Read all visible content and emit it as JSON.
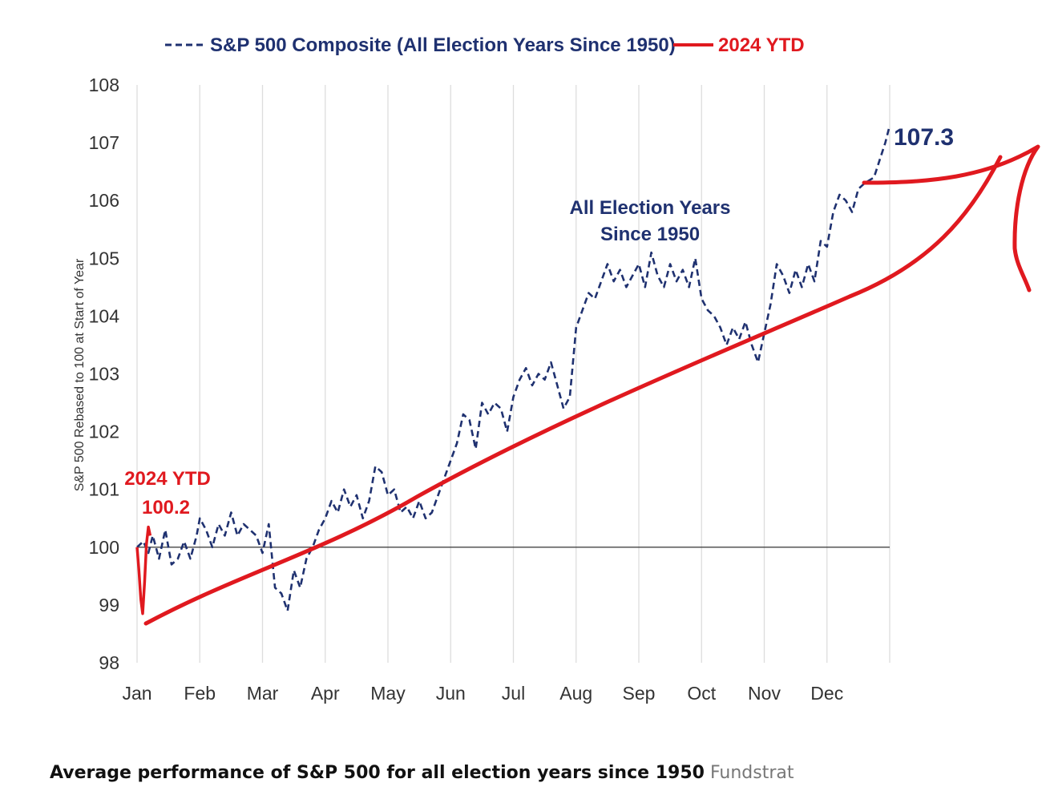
{
  "legend": {
    "composite_label": "S&P 500 Composite (All Election Years Since 1950)",
    "ytd_label": "2024 YTD"
  },
  "annotations": {
    "series_label_line1": "All Election Years",
    "series_label_line2": "Since 1950",
    "end_value": "107.3",
    "ytd_title": "2024 YTD",
    "ytd_value": "100.2"
  },
  "caption": {
    "title": "Average performance of S&P 500 for all election years since 1950",
    "source": "Fundstrat"
  },
  "colors": {
    "composite": "#1f3170",
    "ytd": "#e0191f",
    "grid": "#dddddd",
    "baseline": "#444444"
  },
  "chart_data": {
    "type": "line",
    "title": "",
    "xlabel": "",
    "ylabel": "S&P 500 Rebased to 100 at Start of Year",
    "ylim": [
      98,
      108
    ],
    "yticks": [
      98,
      99,
      100,
      101,
      102,
      103,
      104,
      105,
      106,
      107,
      108
    ],
    "months": [
      "Jan",
      "Feb",
      "Mar",
      "Apr",
      "May",
      "Jun",
      "Jul",
      "Aug",
      "Sep",
      "Oct",
      "Nov",
      "Dec"
    ],
    "reference_line": 100,
    "grid": "vertical",
    "legend_position": "top",
    "series": [
      {
        "name": "S&P 500 Composite (All Election Years Since 1950)",
        "style": "dashed",
        "x": [
          0.0,
          0.1,
          0.18,
          0.25,
          0.35,
          0.45,
          0.55,
          0.65,
          0.75,
          0.85,
          0.95,
          1.0,
          1.1,
          1.2,
          1.3,
          1.4,
          1.5,
          1.6,
          1.7,
          1.8,
          1.9,
          2.0,
          2.1,
          2.2,
          2.3,
          2.4,
          2.5,
          2.6,
          2.7,
          2.8,
          2.9,
          3.0,
          3.1,
          3.2,
          3.3,
          3.4,
          3.5,
          3.6,
          3.7,
          3.8,
          3.9,
          4.0,
          4.1,
          4.2,
          4.3,
          4.4,
          4.5,
          4.6,
          4.7,
          4.8,
          4.9,
          5.0,
          5.1,
          5.2,
          5.3,
          5.4,
          5.5,
          5.6,
          5.7,
          5.8,
          5.9,
          6.0,
          6.1,
          6.2,
          6.3,
          6.4,
          6.5,
          6.6,
          6.7,
          6.8,
          6.9,
          7.0,
          7.1,
          7.2,
          7.3,
          7.4,
          7.5,
          7.6,
          7.7,
          7.8,
          7.9,
          8.0,
          8.1,
          8.2,
          8.3,
          8.4,
          8.5,
          8.6,
          8.7,
          8.8,
          8.9,
          9.0,
          9.1,
          9.2,
          9.3,
          9.4,
          9.5,
          9.6,
          9.7,
          9.8,
          9.9,
          10.0,
          10.1,
          10.2,
          10.3,
          10.4,
          10.5,
          10.6,
          10.7,
          10.8,
          10.9,
          11.0,
          11.1,
          11.2,
          11.3,
          11.4,
          11.5,
          11.6,
          11.75,
          11.93,
          12.0
        ],
        "values": [
          100.0,
          100.1,
          99.9,
          100.2,
          99.8,
          100.3,
          99.7,
          99.8,
          100.1,
          99.8,
          100.2,
          100.5,
          100.3,
          100.0,
          100.4,
          100.2,
          100.6,
          100.2,
          100.4,
          100.3,
          100.2,
          99.9,
          100.4,
          99.3,
          99.2,
          98.9,
          99.6,
          99.3,
          99.8,
          100.0,
          100.3,
          100.5,
          100.8,
          100.6,
          101.0,
          100.7,
          100.9,
          100.5,
          100.8,
          101.4,
          101.3,
          100.9,
          101.0,
          100.6,
          100.7,
          100.5,
          100.8,
          100.5,
          100.6,
          100.9,
          101.2,
          101.5,
          101.8,
          102.3,
          102.2,
          101.7,
          102.5,
          102.3,
          102.5,
          102.4,
          102.0,
          102.6,
          102.9,
          103.1,
          102.8,
          103.0,
          102.9,
          103.2,
          102.8,
          102.4,
          102.6,
          103.8,
          104.1,
          104.4,
          104.3,
          104.6,
          104.9,
          104.6,
          104.8,
          104.5,
          104.7,
          104.9,
          104.5,
          105.1,
          104.7,
          104.5,
          104.9,
          104.6,
          104.8,
          104.5,
          105.0,
          104.3,
          104.1,
          104.0,
          103.8,
          103.5,
          103.8,
          103.6,
          103.9,
          103.5,
          103.2,
          103.7,
          104.2,
          104.9,
          104.7,
          104.4,
          104.8,
          104.5,
          104.9,
          104.6,
          105.3,
          105.2,
          105.8,
          106.1,
          106.0,
          105.8,
          106.2,
          106.3,
          106.4,
          107.0,
          107.3
        ]
      },
      {
        "name": "2024 YTD",
        "style": "solid",
        "x": [
          0.0,
          0.03,
          0.06,
          0.09,
          0.12,
          0.15,
          0.18,
          0.21
        ],
        "values": [
          100.0,
          99.6,
          99.1,
          98.85,
          99.4,
          100.05,
          100.35,
          100.2
        ]
      }
    ]
  }
}
